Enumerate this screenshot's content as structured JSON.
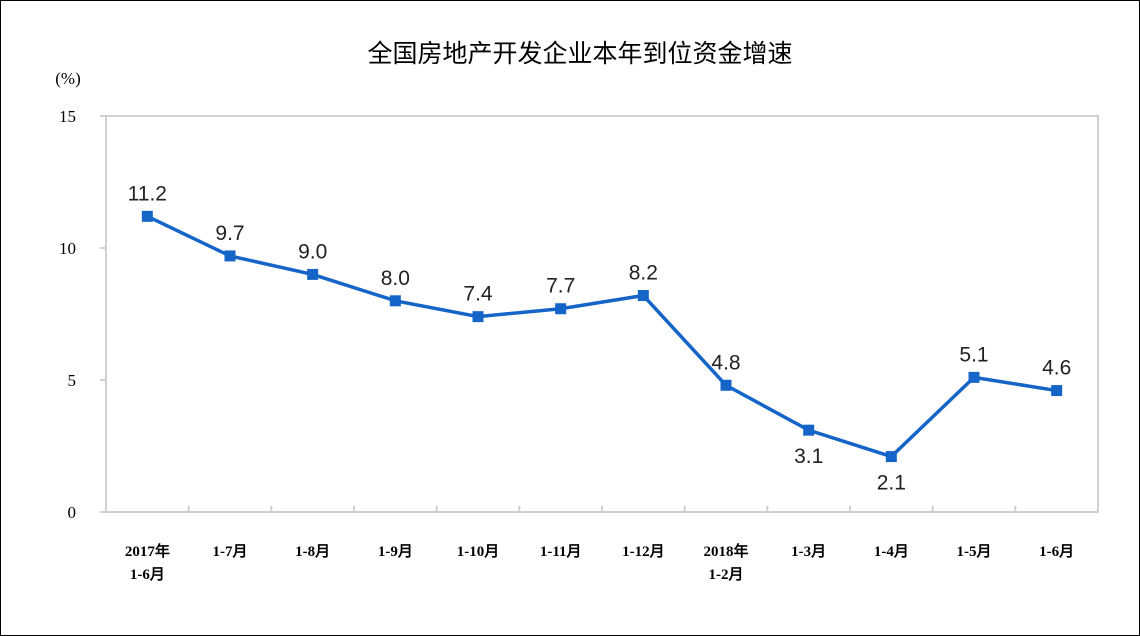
{
  "chart_data": {
    "type": "line",
    "title": "全国房地产开发企业本年到位资金增速",
    "ylabel": "(%)",
    "xlabel": "",
    "ylim": [
      0,
      15
    ],
    "yticks": [
      0,
      5,
      10,
      15
    ],
    "grid": false,
    "legend": null,
    "categories": [
      [
        "2017年",
        "1-6月"
      ],
      [
        "1-7月"
      ],
      [
        "1-8月"
      ],
      [
        "1-9月"
      ],
      [
        "1-10月"
      ],
      [
        "1-11月"
      ],
      [
        "1-12月"
      ],
      [
        "2018年",
        "1-2月"
      ],
      [
        "1-3月"
      ],
      [
        "1-4月"
      ],
      [
        "1-5月"
      ],
      [
        "1-6月"
      ]
    ],
    "series": [
      {
        "name": "到位资金增速",
        "color": "#1565C8",
        "marker": "square",
        "values": [
          11.2,
          9.7,
          9.0,
          8.0,
          7.4,
          7.7,
          8.2,
          4.8,
          3.1,
          2.1,
          5.1,
          4.6
        ],
        "labels": [
          "11.2",
          "9.7",
          "9.0",
          "8.0",
          "7.4",
          "7.7",
          "8.2",
          "4.8",
          "3.1",
          "2.1",
          "5.1",
          "4.6"
        ],
        "label_position": [
          "above",
          "above",
          "above",
          "above",
          "above",
          "above",
          "above",
          "above",
          "below",
          "below",
          "above",
          "above"
        ]
      }
    ]
  }
}
